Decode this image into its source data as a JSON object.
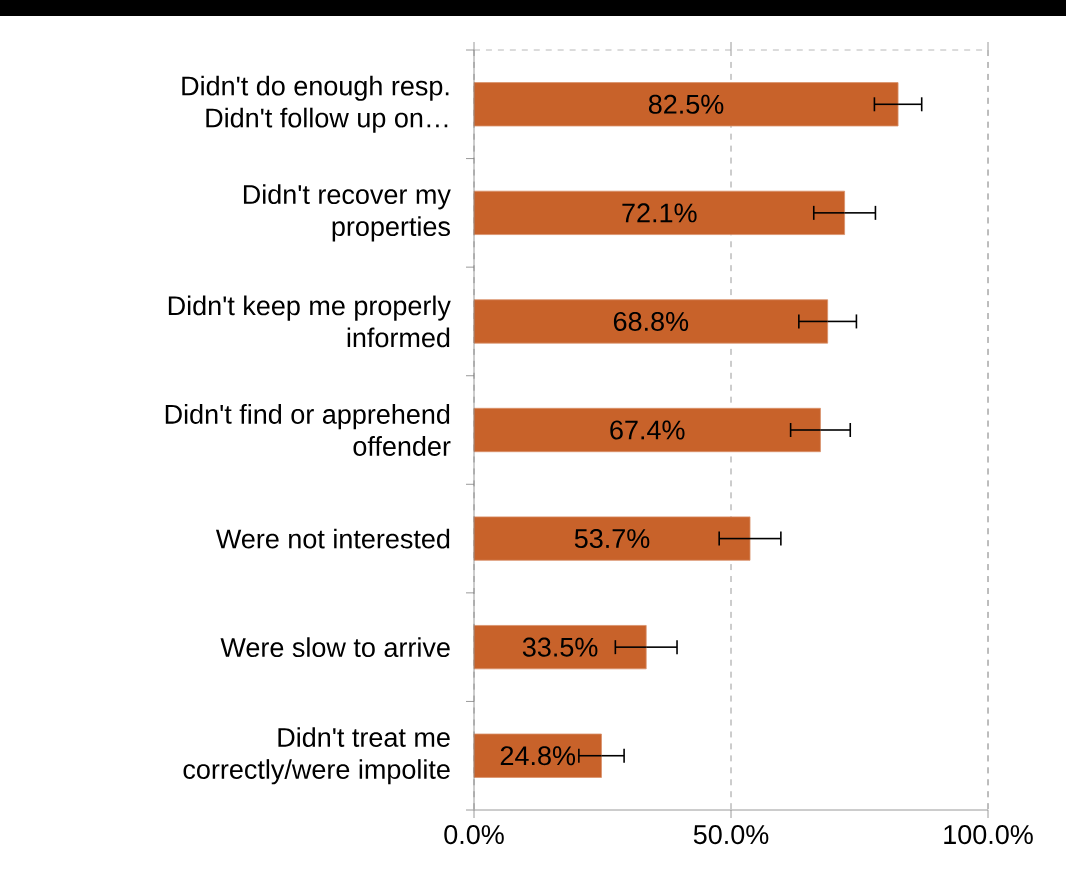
{
  "chart_data": {
    "type": "bar",
    "orientation": "horizontal",
    "categories": [
      "Didn't do enough resp. Didn't follow up on…",
      "Didn't recover my properties",
      "Didn't keep me properly informed",
      "Didn't find or apprehend offender",
      "Were not interested",
      "Were slow to arrive",
      "Didn't treat me correctly/were impolite"
    ],
    "values": [
      82.5,
      72.1,
      68.8,
      67.4,
      53.7,
      33.5,
      24.8
    ],
    "errors": [
      4.6,
      6,
      5.6,
      5.8,
      6,
      6,
      4.4
    ],
    "value_labels": [
      "82.5%",
      "72.1%",
      "68.8%",
      "67.4%",
      "53.7%",
      "33.5%",
      "24.8%"
    ],
    "color": "#c8622a",
    "xlim": [
      0,
      100
    ],
    "xticks": [
      {
        "value": 0,
        "label": "0.0%"
      },
      {
        "value": 50,
        "label": "50.0%"
      },
      {
        "value": 100,
        "label": "100.0%"
      }
    ],
    "grid": "x"
  }
}
